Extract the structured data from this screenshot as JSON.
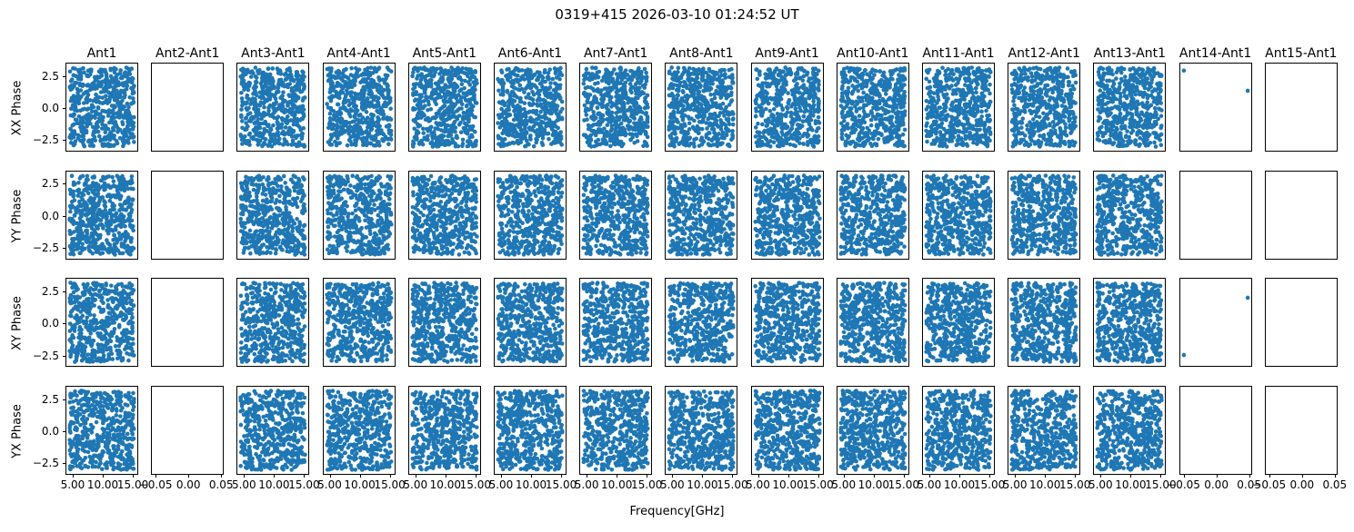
{
  "title": "0319+415 2026-03-10 01:24:52 UT",
  "chart_data": {
    "type": "scatter",
    "title": "0319+415 2026-03-10 01:24:52 UT",
    "xlabel": "Frequency[GHz]",
    "grid": {
      "rows": 4,
      "cols": 15
    },
    "row_labels": [
      "XX Phase",
      "YY Phase",
      "XY Phase",
      "YX Phase"
    ],
    "col_titles": [
      "Ant1",
      "Ant2-Ant1",
      "Ant3-Ant1",
      "Ant4-Ant1",
      "Ant5-Ant1",
      "Ant6-Ant1",
      "Ant7-Ant1",
      "Ant8-Ant1",
      "Ant9-Ant1",
      "Ant10-Ant1",
      "Ant11-Ant1",
      "Ant12-Ant1",
      "Ant13-Ant1",
      "Ant14-Ant1",
      "Ant15-Ant1"
    ],
    "col_kinds": [
      "dense",
      "empty",
      "dense",
      "dense",
      "dense",
      "dense",
      "dense",
      "dense",
      "dense",
      "dense",
      "dense",
      "dense",
      "dense",
      "sparse",
      "empty"
    ],
    "ylim": [
      -3.46,
      3.46
    ],
    "yticks": {
      "values": [
        2.5,
        0.0,
        -2.5
      ],
      "labels": [
        "2.5",
        "0.0",
        "−2.5"
      ]
    },
    "axes_presets": {
      "dense": {
        "xlim": [
          3.95,
          16.05
        ],
        "xtick_values": [
          5.0,
          10.0,
          15.0
        ],
        "xtick_labels": [
          "5.00",
          "10.00",
          "15.00"
        ]
      },
      "empty": {
        "xlim": [
          -0.0555,
          0.0555
        ],
        "xtick_values": [
          -0.05,
          0.0,
          0.05
        ],
        "xtick_labels": [
          "−0.05",
          "0.00",
          "0.05"
        ]
      }
    },
    "dense_scatter": {
      "n_points": 540,
      "x_range": [
        4.5,
        15.5
      ],
      "y_range": [
        -3.14,
        3.14
      ],
      "description": "uniform random wrapped-phase scatter filling each calibrated baseline panel"
    },
    "sparse_points": {
      "XX Phase": [
        {
          "x": -0.05,
          "y": 2.9
        },
        {
          "x": 0.05,
          "y": 1.3
        }
      ],
      "YY Phase": [],
      "XY Phase": [
        {
          "x": 0.05,
          "y": 1.95
        },
        {
          "x": -0.05,
          "y": -2.6
        }
      ],
      "YX Phase": []
    },
    "marker": {
      "color": "#1f77b4",
      "radius_px": 2.3
    },
    "legend": null,
    "grid_lines": false
  }
}
